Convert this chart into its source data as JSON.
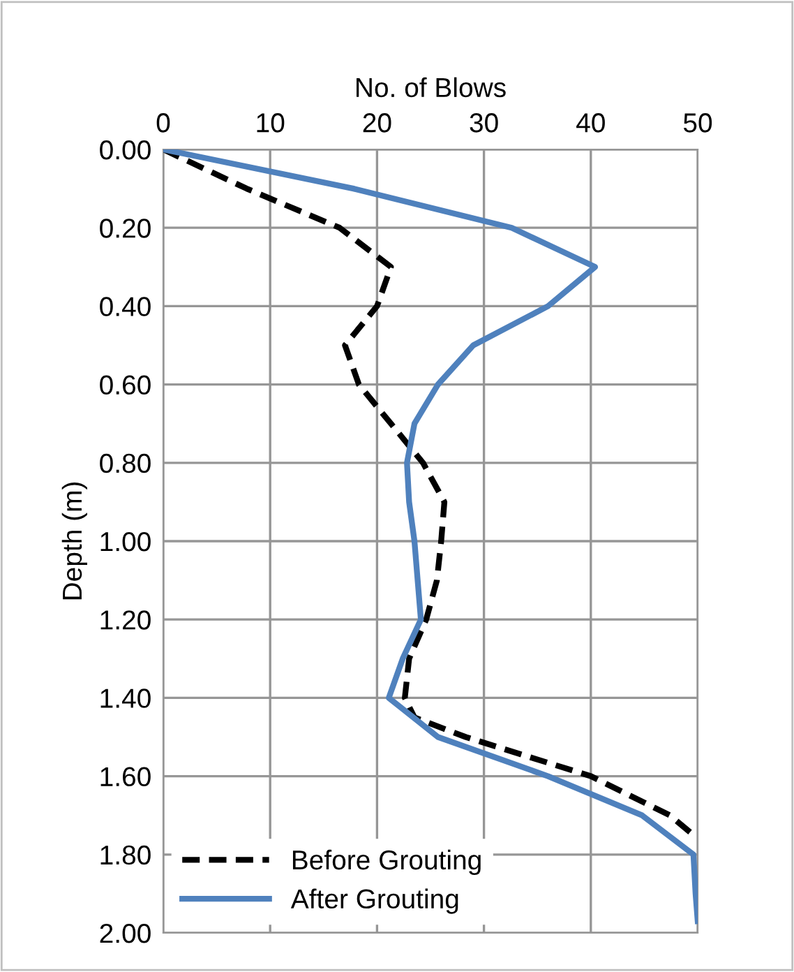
{
  "chart_data": {
    "type": "line",
    "xlabel": "No. of Blows",
    "ylabel": "Depth (m)",
    "xlim": [
      0,
      50
    ],
    "xticks": [
      0,
      10,
      20,
      30,
      40,
      50
    ],
    "ylim": [
      2.0,
      0.0
    ],
    "yticks": [
      {
        "value": 0.0,
        "label": "0.00"
      },
      {
        "value": 0.2,
        "label": "0.20"
      },
      {
        "value": 0.4,
        "label": "0.40"
      },
      {
        "value": 0.6,
        "label": "0.60"
      },
      {
        "value": 0.8,
        "label": "0.80"
      },
      {
        "value": 1.0,
        "label": "1.00"
      },
      {
        "value": 1.2,
        "label": "1.20"
      },
      {
        "value": 1.4,
        "label": "1.40"
      },
      {
        "value": 1.6,
        "label": "1.60"
      },
      {
        "value": 1.8,
        "label": "1.80"
      },
      {
        "value": 2.0,
        "label": "2.00"
      }
    ],
    "grid": true,
    "legend": "bottom left",
    "series": [
      {
        "name": "Before Grouting",
        "color": "#000000",
        "line_style": "dashed",
        "x": [
          0,
          7.8,
          16.5,
          21.3,
          20,
          17,
          18.3,
          21.3,
          24.3,
          26.3,
          26,
          25.6,
          24.6,
          23,
          22.6,
          23.5,
          28.3,
          40,
          47.4,
          49.6
        ],
        "values": [
          0,
          0.1,
          0.2,
          0.3,
          0.4,
          0.5,
          0.6,
          0.7,
          0.8,
          0.9,
          1.0,
          1.1,
          1.2,
          1.3,
          1.4,
          1.45,
          1.5,
          1.6,
          1.7,
          1.75
        ]
      },
      {
        "name": "After Grouting",
        "color": "#4f81bd",
        "line_style": "solid",
        "x": [
          0,
          17.8,
          32.6,
          40.4,
          36,
          29,
          25.7,
          23.5,
          22.8,
          23,
          23.5,
          23.8,
          24.1,
          22.4,
          21.1,
          25.7,
          36,
          44.8,
          49.6,
          49.8,
          50
        ],
        "values": [
          0,
          0.1,
          0.2,
          0.3,
          0.4,
          0.5,
          0.6,
          0.7,
          0.8,
          0.9,
          1.0,
          1.1,
          1.2,
          1.3,
          1.4,
          1.5,
          1.6,
          1.7,
          1.8,
          1.9,
          1.97
        ]
      }
    ]
  }
}
